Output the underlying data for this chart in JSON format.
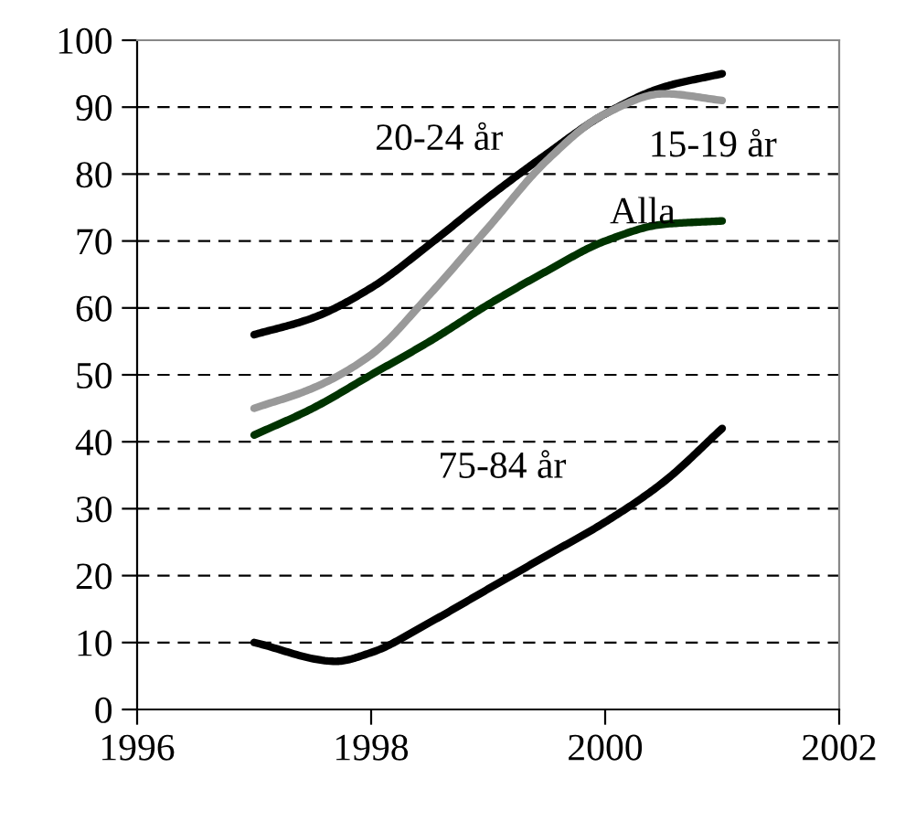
{
  "chart_data": {
    "type": "line",
    "series": [
      {
        "name": "20-24 år",
        "color": "#000000",
        "x": [
          1997,
          1997.5,
          1998,
          1998.5,
          1999,
          1999.5,
          2000,
          2000.5,
          2001
        ],
        "values": [
          56,
          58.5,
          63,
          69.5,
          76.5,
          83,
          89,
          93,
          95
        ]
      },
      {
        "name": "15-19 år",
        "color": "#999999",
        "x": [
          1997,
          1997.5,
          1998,
          1998.5,
          1999,
          1999.5,
          2000,
          2000.5,
          2001
        ],
        "values": [
          45,
          48,
          53,
          62,
          72,
          82,
          89,
          92,
          91
        ]
      },
      {
        "name": "Alla",
        "color": "#003300",
        "x": [
          1997,
          1997.5,
          1998,
          1998.5,
          1999,
          1999.5,
          2000,
          2000.5,
          2001
        ],
        "values": [
          41,
          45,
          50,
          55,
          60.5,
          65.5,
          70,
          72.5,
          73
        ]
      },
      {
        "name": "75-84 år",
        "color": "#000000",
        "x": [
          1997,
          1997.7,
          1998,
          1998.5,
          1999,
          1999.5,
          2000,
          2000.5,
          2001
        ],
        "values": [
          10,
          7.2,
          8.5,
          13,
          18,
          23,
          28,
          34,
          42
        ]
      }
    ],
    "xlim": [
      1996,
      2002
    ],
    "xticks": [
      1996,
      1998,
      2000,
      2002
    ],
    "ylim": [
      0,
      100
    ],
    "yticks": [
      0,
      10,
      20,
      30,
      40,
      50,
      60,
      70,
      80,
      90,
      100
    ],
    "grid": "y",
    "line_style": "solid",
    "marker": "none",
    "legend": false
  }
}
